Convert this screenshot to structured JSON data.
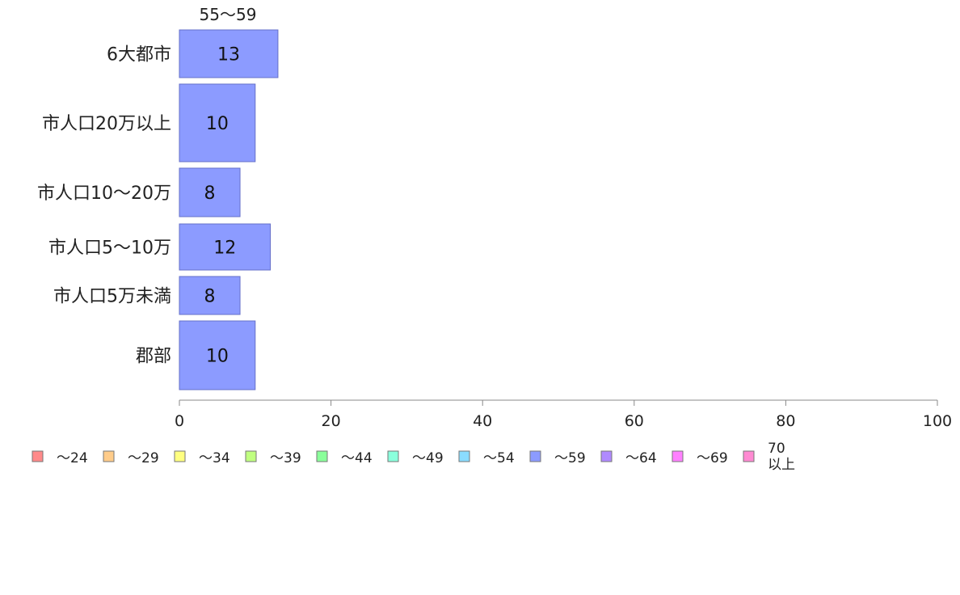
{
  "chart_data": {
    "type": "bar",
    "orientation": "horizontal",
    "group_label": "55〜59",
    "categories": [
      "6大都市",
      "市人口20万以上",
      "市人口10〜20万",
      "市人口5〜10万",
      "市人口5万未満",
      "郡部"
    ],
    "series": [
      {
        "name": "〜59",
        "values": [
          13,
          10,
          8,
          12,
          8,
          10
        ],
        "color": "#8c9bff"
      }
    ],
    "data_labels": [
      "13",
      "10",
      "8",
      "12",
      "8",
      "10"
    ],
    "xlim": [
      0,
      100
    ],
    "x_ticks": [
      0,
      20,
      40,
      60,
      80,
      100
    ],
    "tick_labels": [
      "0",
      "20",
      "40",
      "60",
      "80",
      "100"
    ],
    "grid": false,
    "legend_position": "bottom",
    "legend": [
      {
        "label": "〜24",
        "color": "#ff8a8a"
      },
      {
        "label": "〜29",
        "color": "#ffcc8a"
      },
      {
        "label": "〜34",
        "color": "#ffff80"
      },
      {
        "label": "〜39",
        "color": "#c0ff80"
      },
      {
        "label": "〜44",
        "color": "#8aff9a"
      },
      {
        "label": "〜49",
        "color": "#8affdc"
      },
      {
        "label": "〜54",
        "color": "#8adcff"
      },
      {
        "label": "〜59",
        "color": "#8c9bff"
      },
      {
        "label": "〜64",
        "color": "#b08aff"
      },
      {
        "label": "〜69",
        "color": "#ff80ff"
      },
      {
        "label": "70\n以上",
        "color": "#ff8ad2"
      }
    ]
  }
}
